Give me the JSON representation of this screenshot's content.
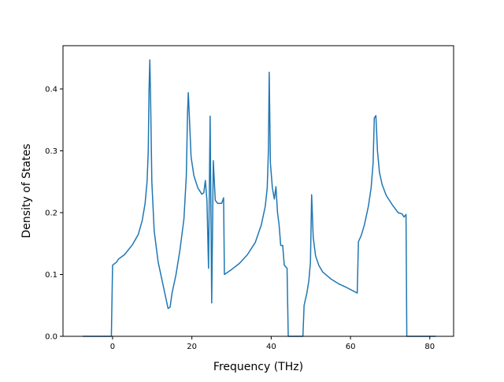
{
  "chart_data": {
    "type": "line",
    "title": "",
    "xlabel": "Frequency (THz)",
    "ylabel": "Density of States",
    "xlim": [
      -12.5,
      86
    ],
    "ylim": [
      0,
      0.47
    ],
    "xticks": [
      0,
      20,
      40,
      60,
      80
    ],
    "yticks": [
      0.0,
      0.1,
      0.2,
      0.3,
      0.4
    ],
    "xtick_labels": [
      "0",
      "20",
      "40",
      "60",
      "80"
    ],
    "ytick_labels": [
      "0.0",
      "0.1",
      "0.2",
      "0.3",
      "0.4"
    ],
    "grid": false,
    "legend": "none",
    "series": [
      {
        "color": "#1f77b4",
        "points": [
          [
            -7.5,
            0
          ],
          [
            -0.3,
            0
          ],
          [
            0.0,
            0.115
          ],
          [
            1.0,
            0.12
          ],
          [
            1.5,
            0.125
          ],
          [
            3,
            0.132
          ],
          [
            5,
            0.148
          ],
          [
            6.5,
            0.165
          ],
          [
            7.5,
            0.188
          ],
          [
            8.2,
            0.215
          ],
          [
            8.7,
            0.25
          ],
          [
            9.0,
            0.3
          ],
          [
            9.2,
            0.4
          ],
          [
            9.4,
            0.447
          ],
          [
            9.6,
            0.38
          ],
          [
            9.9,
            0.25
          ],
          [
            10.5,
            0.17
          ],
          [
            11.5,
            0.12
          ],
          [
            12.5,
            0.09
          ],
          [
            13.5,
            0.06
          ],
          [
            14.0,
            0.045
          ],
          [
            14.5,
            0.047
          ],
          [
            15.0,
            0.07
          ],
          [
            16.0,
            0.1
          ],
          [
            17.0,
            0.14
          ],
          [
            18.0,
            0.19
          ],
          [
            18.6,
            0.26
          ],
          [
            18.9,
            0.36
          ],
          [
            19.1,
            0.394
          ],
          [
            19.4,
            0.35
          ],
          [
            19.8,
            0.29
          ],
          [
            20.5,
            0.26
          ],
          [
            21.5,
            0.24
          ],
          [
            22.5,
            0.23
          ],
          [
            23.0,
            0.232
          ],
          [
            23.4,
            0.252
          ],
          [
            23.8,
            0.22
          ],
          [
            24.2,
            0.11
          ],
          [
            24.6,
            0.356
          ],
          [
            25.0,
            0.054
          ],
          [
            25.4,
            0.284
          ],
          [
            25.9,
            0.22
          ],
          [
            26.5,
            0.215
          ],
          [
            27.5,
            0.215
          ],
          [
            28.0,
            0.224
          ],
          [
            28.2,
            0.1
          ],
          [
            30,
            0.108
          ],
          [
            32,
            0.118
          ],
          [
            34,
            0.132
          ],
          [
            36,
            0.152
          ],
          [
            37.5,
            0.18
          ],
          [
            38.5,
            0.21
          ],
          [
            39.0,
            0.24
          ],
          [
            39.3,
            0.3
          ],
          [
            39.5,
            0.427
          ],
          [
            39.8,
            0.28
          ],
          [
            40.3,
            0.24
          ],
          [
            40.8,
            0.222
          ],
          [
            41.2,
            0.242
          ],
          [
            41.6,
            0.2
          ],
          [
            42.0,
            0.18
          ],
          [
            42.4,
            0.147
          ],
          [
            42.9,
            0.147
          ],
          [
            43.3,
            0.115
          ],
          [
            44.0,
            0.11
          ],
          [
            44.3,
            0
          ],
          [
            48.0,
            0
          ],
          [
            48.3,
            0.05
          ],
          [
            49.0,
            0.07
          ],
          [
            49.5,
            0.09
          ],
          [
            49.9,
            0.12
          ],
          [
            50.2,
            0.229
          ],
          [
            50.6,
            0.16
          ],
          [
            51.2,
            0.13
          ],
          [
            52.0,
            0.115
          ],
          [
            53,
            0.104
          ],
          [
            55,
            0.093
          ],
          [
            57,
            0.085
          ],
          [
            59,
            0.079
          ],
          [
            61.7,
            0.07
          ],
          [
            62.0,
            0.153
          ],
          [
            62.7,
            0.163
          ],
          [
            63.5,
            0.18
          ],
          [
            64.5,
            0.21
          ],
          [
            65.2,
            0.24
          ],
          [
            65.7,
            0.28
          ],
          [
            66.0,
            0.353
          ],
          [
            66.4,
            0.357
          ],
          [
            66.8,
            0.3
          ],
          [
            67.3,
            0.265
          ],
          [
            68,
            0.245
          ],
          [
            69,
            0.228
          ],
          [
            70.5,
            0.213
          ],
          [
            72,
            0.2
          ],
          [
            73,
            0.198
          ],
          [
            73.5,
            0.193
          ],
          [
            74.0,
            0.197
          ],
          [
            74.2,
            0
          ],
          [
            81.5,
            0
          ]
        ]
      }
    ]
  }
}
